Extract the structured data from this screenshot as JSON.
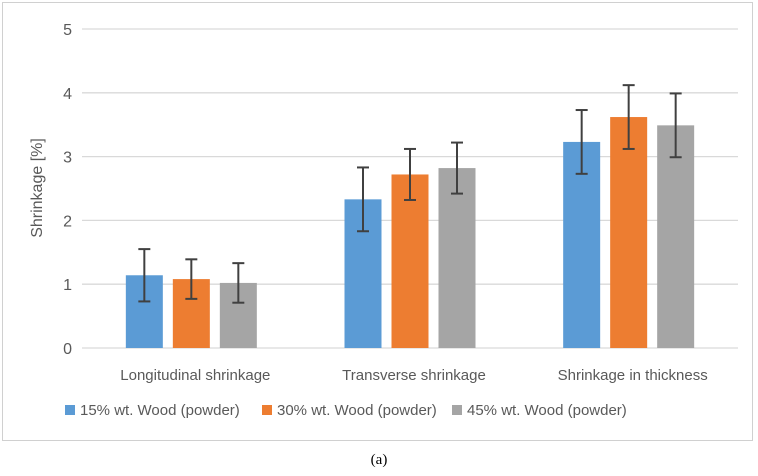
{
  "caption": "(a)",
  "chart_data": {
    "type": "bar",
    "title": "",
    "xlabel": "",
    "ylabel": "Shrinkage [%]",
    "ylim": [
      0,
      5
    ],
    "yticks": [
      0,
      1,
      2,
      3,
      4,
      5
    ],
    "grid": true,
    "legend_position": "bottom",
    "categories": [
      "Longitudinal shrinkage",
      "Transverse shrinkage",
      "Shrinkage in thickness"
    ],
    "series": [
      {
        "name": "15% wt. Wood (powder)",
        "color": "#5b9bd5",
        "values": [
          1.14,
          2.33,
          3.23
        ],
        "error": [
          0.41,
          0.5,
          0.5
        ]
      },
      {
        "name": "30% wt. Wood (powder)",
        "color": "#ed7d31",
        "values": [
          1.08,
          2.72,
          3.62
        ],
        "error": [
          0.31,
          0.4,
          0.5
        ]
      },
      {
        "name": "45% wt. Wood (powder)",
        "color": "#a5a5a5",
        "values": [
          1.02,
          2.82,
          3.49
        ],
        "error": [
          0.31,
          0.4,
          0.5
        ]
      }
    ]
  }
}
